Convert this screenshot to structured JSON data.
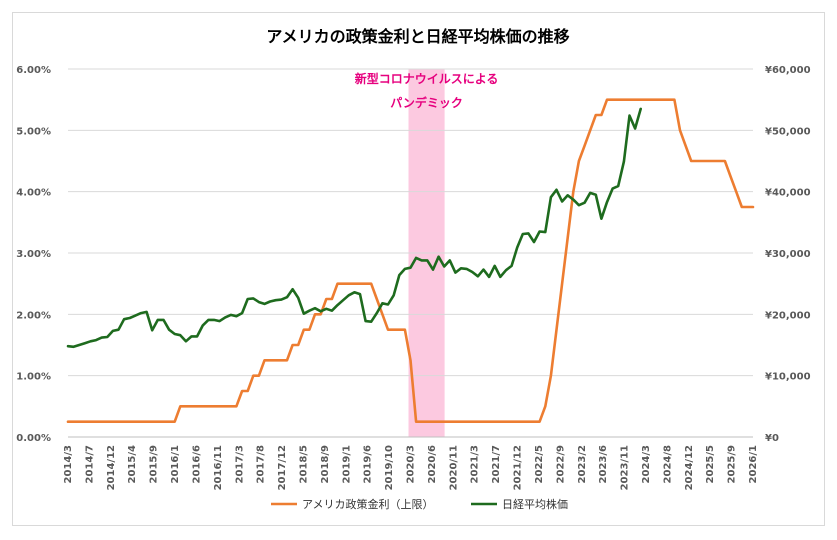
{
  "chart_data": {
    "type": "line",
    "title": "アメリカの政策金利と日経平均株価の推移",
    "x_labels": [
      "2014/3",
      "2014/7",
      "2014/12",
      "2015/4",
      "2015/9",
      "2016/1",
      "2016/6",
      "2016/11",
      "2017/3",
      "2017/8",
      "2017/12",
      "2018/5",
      "2018/9",
      "2019/1",
      "2019/6",
      "2019/10",
      "2020/3",
      "2020/6",
      "2020/11",
      "2021/3",
      "2021/7",
      "2021/12",
      "2022/5",
      "2022/9",
      "2023/2",
      "2023/6",
      "2023/11",
      "2024/3",
      "2024/8",
      "2024/12",
      "2025/5",
      "2025/9",
      "2026/1"
    ],
    "y_left": {
      "min": 0,
      "max": 6,
      "ticks": [
        "0.00%",
        "1.00%",
        "2.00%",
        "3.00%",
        "4.00%",
        "5.00%",
        "6.00%"
      ]
    },
    "y_right": {
      "min": 0,
      "max": 60000,
      "ticks": [
        "¥0",
        "¥10,000",
        "¥20,000",
        "¥30,000",
        "¥40,000",
        "¥50,000",
        "¥60,000"
      ]
    },
    "gridlines": true,
    "annotation": {
      "lines": [
        "新型コロナウイルスによる",
        "パンデミック"
      ],
      "start_index": 16,
      "end_index": 17.5,
      "band_color": "#fcc9e0",
      "text_color": "#e6007e"
    },
    "series": [
      {
        "name": "アメリカ政策金利（上限）",
        "axis": "left",
        "color": "#ed7d31",
        "values": [
          0.25,
          0.25,
          0.25,
          0.25,
          0.25,
          0.25,
          0.25,
          0.25,
          0.25,
          0.25,
          0.25,
          0.25,
          0.25,
          0.25,
          0.25,
          0.25,
          0.25,
          0.25,
          0.25,
          0.25,
          0.5,
          0.5,
          0.5,
          0.5,
          0.5,
          0.5,
          0.5,
          0.5,
          0.5,
          0.5,
          0.5,
          0.75,
          0.75,
          1.0,
          1.0,
          1.25,
          1.25,
          1.25,
          1.25,
          1.25,
          1.5,
          1.5,
          1.75,
          1.75,
          2.0,
          2.0,
          2.25,
          2.25,
          2.5,
          2.5,
          2.5,
          2.5,
          2.5,
          2.5,
          2.5,
          2.25,
          2.0,
          1.75,
          1.75,
          1.75,
          1.75,
          1.25,
          0.25,
          0.25,
          0.25,
          0.25,
          0.25,
          0.25,
          0.25,
          0.25,
          0.25,
          0.25,
          0.25,
          0.25,
          0.25,
          0.25,
          0.25,
          0.25,
          0.25,
          0.25,
          0.25,
          0.25,
          0.25,
          0.25,
          0.25,
          0.5,
          1.0,
          1.75,
          2.5,
          3.25,
          4.0,
          4.5,
          4.75,
          5.0,
          5.25,
          5.25,
          5.5,
          5.5,
          5.5,
          5.5,
          5.5,
          5.5,
          5.5,
          5.5,
          5.5,
          5.5,
          5.5,
          5.5,
          5.5,
          5.0,
          4.75,
          4.5,
          4.5,
          4.5,
          4.5,
          4.5,
          4.5,
          4.5,
          4.25,
          4.0,
          3.75,
          3.75,
          3.75
        ]
      },
      {
        "name": "日経平均株価",
        "axis": "right",
        "color": "#1e6b1e",
        "values": [
          14800,
          14700,
          15000,
          15300,
          15600,
          15800,
          16200,
          16300,
          17300,
          17500,
          19200,
          19400,
          19800,
          20200,
          20400,
          17400,
          19100,
          19100,
          17500,
          16800,
          16600,
          15600,
          16400,
          16400,
          18200,
          19100,
          19100,
          18900,
          19500,
          19900,
          19700,
          20200,
          22500,
          22600,
          22000,
          21700,
          22100,
          22300,
          22400,
          22800,
          24100,
          22700,
          20100,
          20600,
          21000,
          20500,
          20900,
          20600,
          21500,
          22300,
          23100,
          23600,
          23300,
          18900,
          18800,
          20200,
          21800,
          21600,
          23100,
          26400,
          27400,
          27600,
          29200,
          28800,
          28800,
          27300,
          29400,
          27800,
          28800,
          26800,
          27500,
          27400,
          26900,
          26200,
          27300,
          26100,
          27900,
          26100,
          27200,
          27900,
          30900,
          33100,
          33200,
          31800,
          33500,
          33400,
          39100,
          40300,
          38400,
          39400,
          38700,
          37800,
          38200,
          39800,
          39500,
          35600,
          38300,
          40500,
          40900,
          44900,
          52400,
          50300,
          53500
        ]
      }
    ]
  }
}
